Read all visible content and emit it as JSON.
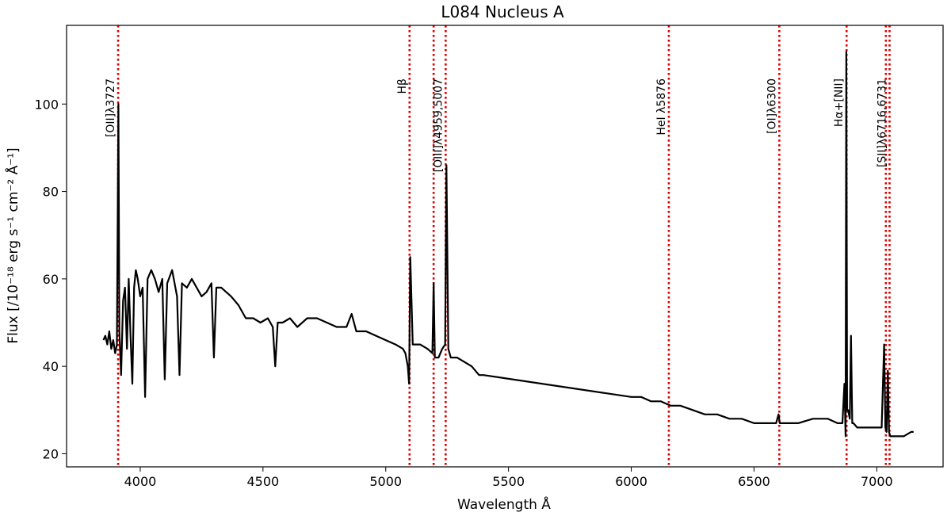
{
  "chart_data": {
    "type": "line",
    "title": "L084 Nucleus A",
    "xlabel": "Wavelength Å",
    "ylabel": "Flux [/10⁻¹⁸ erg s⁻¹ cm⁻² Å⁻¹]",
    "xlim": [
      3700,
      7270
    ],
    "ylim": [
      17,
      118
    ],
    "xticks": [
      4000,
      4500,
      5000,
      5500,
      6000,
      6500,
      7000
    ],
    "yticks": [
      20,
      40,
      60,
      80,
      100
    ],
    "grid": false,
    "series": [
      {
        "color": "#000000",
        "x": [
          3850,
          3858,
          3866,
          3874,
          3882,
          3890,
          3898,
          3905,
          3908,
          3911,
          3915,
          3922,
          3930,
          3938,
          3946,
          3953,
          3960,
          3968,
          3975,
          3982,
          3990,
          4000,
          4010,
          4020,
          4030,
          4045,
          4060,
          4075,
          4090,
          4100,
          4110,
          4130,
          4150,
          4160,
          4170,
          4190,
          4210,
          4230,
          4250,
          4270,
          4290,
          4300,
          4310,
          4330,
          4350,
          4370,
          4400,
          4430,
          4460,
          4490,
          4520,
          4540,
          4550,
          4560,
          4580,
          4610,
          4640,
          4680,
          4720,
          4760,
          4800,
          4840,
          4861,
          4880,
          4920,
          4960,
          5000,
          5040,
          5070,
          5080,
          5090,
          5095,
          5100,
          5110,
          5140,
          5170,
          5190,
          5195,
          5200,
          5215,
          5230,
          5242,
          5247,
          5255,
          5265,
          5290,
          5320,
          5350,
          5380,
          5398,
          6000,
          6040,
          6080,
          6120,
          6160,
          6200,
          6250,
          6300,
          6350,
          6400,
          6450,
          6500,
          6550,
          6590,
          6600,
          6605,
          6620,
          6680,
          6740,
          6800,
          6840,
          6860,
          6868,
          6873,
          6876,
          6879,
          6883,
          6890,
          6895,
          6900,
          6905,
          6920,
          6960,
          7000,
          7020,
          7030,
          7035,
          7040,
          7045,
          7050,
          7055,
          7060,
          7080,
          7110,
          7140,
          7150
        ],
        "y": [
          46,
          47,
          45,
          48,
          44,
          46,
          43,
          45,
          70,
          100,
          48,
          38,
          55,
          58,
          44,
          60,
          48,
          36,
          58,
          62,
          60,
          56,
          58,
          33,
          60,
          62,
          60,
          57,
          60,
          37,
          59,
          62,
          56,
          38,
          59,
          58,
          60,
          58,
          56,
          57,
          59,
          42,
          58,
          58,
          57,
          56,
          54,
          51,
          51,
          50,
          51,
          49,
          40,
          50,
          50,
          51,
          49,
          51,
          51,
          50,
          49,
          49,
          52,
          48,
          48,
          47,
          46,
          45,
          44,
          43,
          40,
          36,
          65,
          45,
          45,
          44,
          43,
          59,
          42,
          42,
          44,
          45,
          86,
          44,
          42,
          42,
          41,
          40,
          38,
          38,
          33,
          33,
          32,
          32,
          31,
          31,
          30,
          29,
          29,
          28,
          28,
          27,
          27,
          27,
          29,
          27,
          27,
          27,
          28,
          28,
          27,
          27,
          36,
          24,
          112,
          30,
          30,
          28,
          47,
          27,
          27,
          26,
          26,
          26,
          26,
          45,
          26,
          25,
          39,
          25,
          24,
          24,
          24,
          24,
          25,
          25
        ]
      }
    ],
    "vlines": [
      {
        "x": 3910,
        "label": "[OII]λ3727"
      },
      {
        "x": 5097,
        "label": "Hβ"
      },
      {
        "x": 5195,
        "label": ""
      },
      {
        "x": 5244,
        "label": "[OIII]λ4959,5007"
      },
      {
        "x": 6153,
        "label": "HeI λ5876"
      },
      {
        "x": 6603,
        "label": "[OI]λ6300"
      },
      {
        "x": 6877,
        "label": "Hα+[NII]"
      },
      {
        "x": 7037,
        "label": ""
      },
      {
        "x": 7052,
        "label": "[SII]λ6716,6731"
      }
    ],
    "vline_color": "#dd0000"
  }
}
